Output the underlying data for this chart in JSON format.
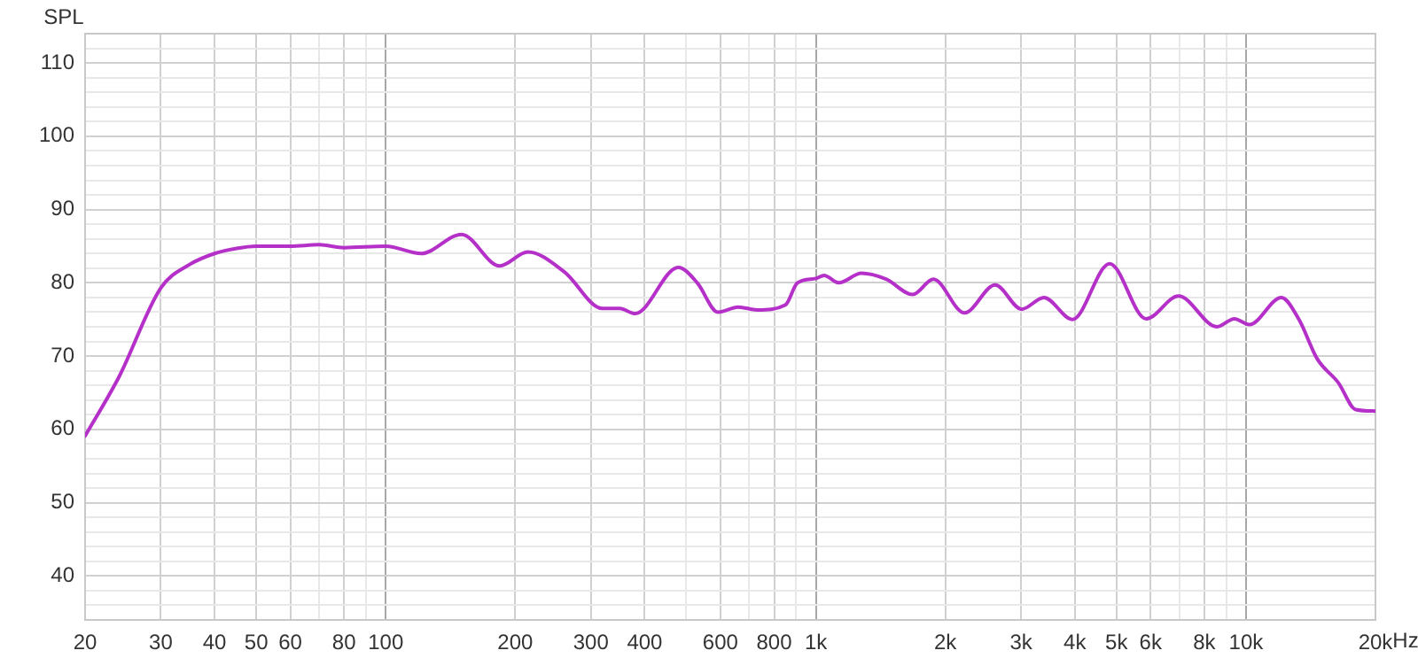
{
  "chart_data": {
    "type": "line",
    "ylabel": "SPL",
    "log": "x",
    "grid": true,
    "legend": false,
    "marker": "none",
    "line_style": "solid",
    "xlim": [
      20,
      20000
    ],
    "xticks": [
      20,
      30,
      40,
      50,
      60,
      {
        "value": 70,
        "label": null
      },
      80,
      {
        "value": 90,
        "label": null
      },
      100,
      200,
      300,
      400,
      {
        "value": 500,
        "label": null
      },
      600,
      {
        "value": 700,
        "label": null
      },
      800,
      {
        "value": 900,
        "label": null
      },
      {
        "value": 1000,
        "label": "1k"
      },
      {
        "value": 2000,
        "label": "2k"
      },
      {
        "value": 3000,
        "label": "3k"
      },
      {
        "value": 4000,
        "label": "4k"
      },
      {
        "value": 5000,
        "label": "5k"
      },
      {
        "value": 6000,
        "label": "6k"
      },
      {
        "value": 7000,
        "label": null
      },
      {
        "value": 8000,
        "label": "8k"
      },
      {
        "value": 9000,
        "label": null
      },
      {
        "value": 10000,
        "label": "10k"
      },
      {
        "value": 20000,
        "label": "20k"
      }
    ],
    "xlabel": "Hz",
    "ylim": [
      34,
      114
    ],
    "yticks": [
      {
        "value": 36,
        "label": null
      },
      {
        "value": 38,
        "label": null
      },
      40,
      {
        "value": 42,
        "label": null
      },
      {
        "value": 44,
        "label": null
      },
      {
        "value": 46,
        "label": null
      },
      {
        "value": 48,
        "label": null
      },
      50,
      {
        "value": 52,
        "label": null
      },
      {
        "value": 54,
        "label": null
      },
      {
        "value": 56,
        "label": null
      },
      {
        "value": 58,
        "label": null
      },
      60,
      {
        "value": 62,
        "label": null
      },
      {
        "value": 64,
        "label": null
      },
      {
        "value": 66,
        "label": null
      },
      {
        "value": 68,
        "label": null
      },
      70,
      {
        "value": 72,
        "label": null
      },
      {
        "value": 74,
        "label": null
      },
      {
        "value": 76,
        "label": null
      },
      {
        "value": 78,
        "label": null
      },
      80,
      {
        "value": 82,
        "label": null
      },
      {
        "value": 84,
        "label": null
      },
      {
        "value": 86,
        "label": null
      },
      {
        "value": 88,
        "label": null
      },
      90,
      {
        "value": 92,
        "label": null
      },
      {
        "value": 94,
        "label": null
      },
      {
        "value": 96,
        "label": null
      },
      {
        "value": 98,
        "label": null
      },
      100,
      {
        "value": 102,
        "label": null
      },
      {
        "value": 104,
        "label": null
      },
      {
        "value": 106,
        "label": null
      },
      {
        "value": 108,
        "label": null
      },
      110,
      {
        "value": 112,
        "label": null
      }
    ],
    "series": [
      {
        "color": "#b52fc9",
        "x": [
          20,
          24,
          30,
          35,
          40,
          45,
          50,
          60,
          70,
          80,
          100,
          121,
          150,
          184,
          214,
          260,
          319,
          350,
          380,
          479,
          530,
          592,
          660,
          730,
          850,
          906,
          1000,
          1045,
          1130,
          1276,
          1456,
          1680,
          1876,
          2215,
          2612,
          3010,
          3390,
          3947,
          4820,
          5860,
          6970,
          8560,
          9400,
          10180,
          12090,
          13280,
          14650,
          16380,
          18000,
          20000
        ],
        "values": [
          59.1,
          67.2,
          79.3,
          82.5,
          84,
          84.7,
          85,
          85,
          85.2,
          84.8,
          85,
          84,
          86.6,
          82.3,
          84.2,
          81.5,
          76.5,
          76.5,
          75.8,
          82.1,
          80,
          76,
          76.7,
          76.3,
          77,
          80,
          80.6,
          81,
          80,
          81.3,
          80.5,
          78.4,
          80.5,
          75.9,
          79.7,
          76.4,
          78,
          75,
          82.6,
          75.1,
          78.2,
          74,
          75.1,
          74.3,
          78,
          75,
          69.6,
          66.4,
          62.7,
          62.5
        ]
      }
    ]
  }
}
